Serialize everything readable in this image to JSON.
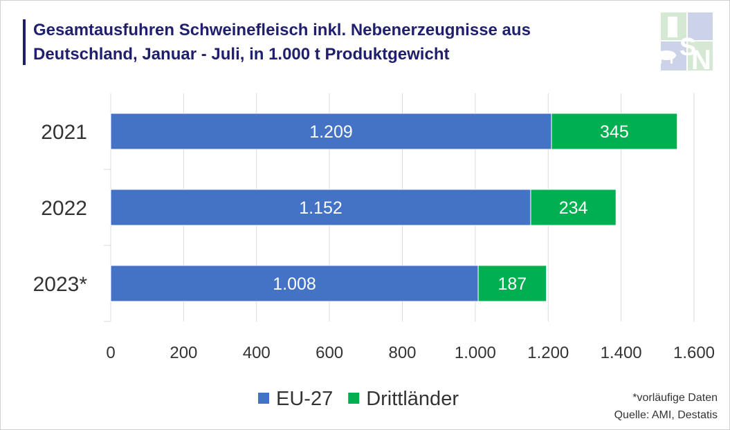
{
  "title_line1": "Gesamtausfuhren Schweinefleisch inkl. Nebenerzeugnisse aus",
  "title_line2": "Deutschland, Januar - Juli, in 1.000 t Produktgewicht",
  "logo_text": "ISN",
  "footnote": "*vorläufige Daten",
  "source": "Quelle: AMI, Destatis",
  "chart_data": {
    "type": "bar",
    "orientation": "horizontal",
    "stacked": true,
    "categories": [
      "2021",
      "2022",
      "2023*"
    ],
    "series": [
      {
        "name": "EU-27",
        "values": [
          1209,
          1152,
          1008
        ],
        "labels": [
          "1.209",
          "1.152",
          "1.008"
        ],
        "color": "#4472c4"
      },
      {
        "name": "Drittländer",
        "values": [
          345,
          234,
          187
        ],
        "labels": [
          "345",
          "234",
          "187"
        ],
        "color": "#00b050"
      }
    ],
    "xlim": [
      0,
      1600
    ],
    "xticks": [
      0,
      200,
      400,
      600,
      800,
      1000,
      1200,
      1400,
      1600
    ],
    "xtick_labels": [
      "0",
      "200",
      "400",
      "600",
      "800",
      "1.000",
      "1.200",
      "1.400",
      "1.600"
    ],
    "grid": "vertical",
    "legend": "bottom"
  }
}
